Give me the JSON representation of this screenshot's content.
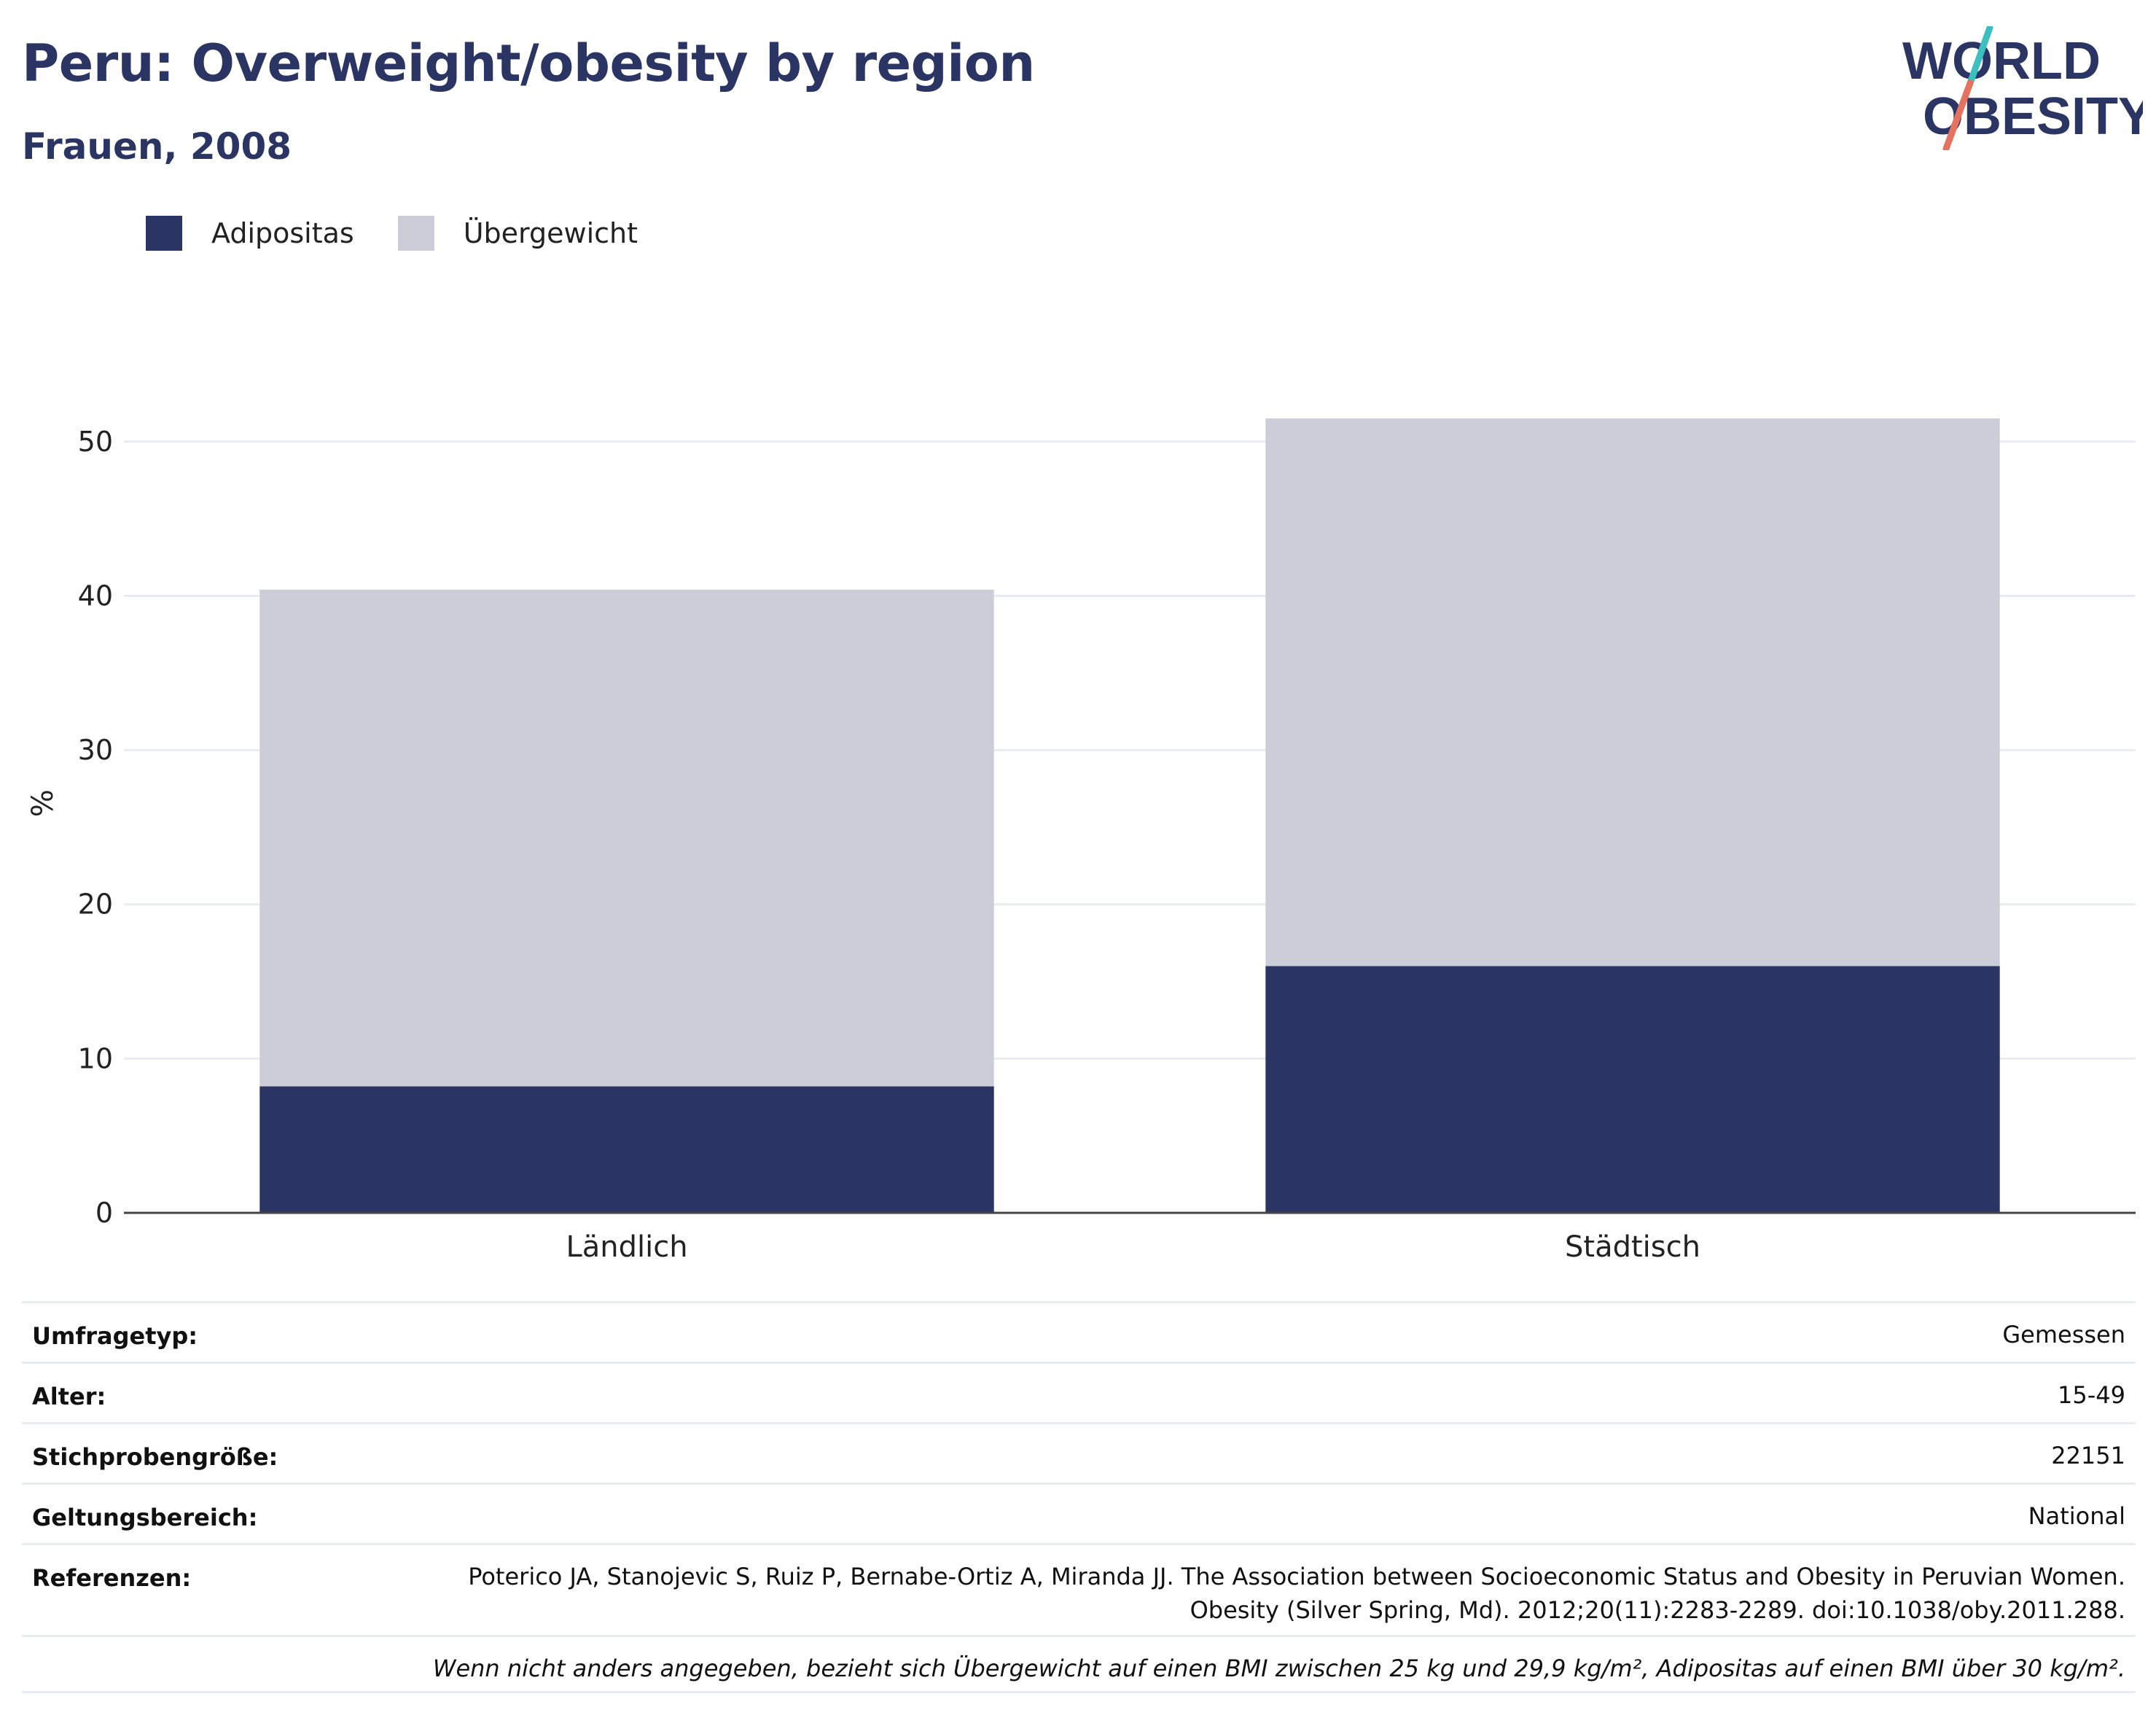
{
  "title": "Peru: Overweight/obesity by region",
  "subtitle": "Frauen, 2008",
  "logo": {
    "line1": "WORLD",
    "line2": "OBESITY"
  },
  "colors": {
    "obesity": "#2b3563",
    "overweight": "#cbcdd8",
    "accent_teal": "#3bbfbf",
    "accent_coral": "#e5725f"
  },
  "chart_data": {
    "type": "bar",
    "stacked": true,
    "categories": [
      "Ländlich",
      "Städtisch"
    ],
    "series": [
      {
        "name": "Adipositas",
        "values": [
          8.2,
          16.0
        ]
      },
      {
        "name": "Übergewicht",
        "values": [
          32.2,
          35.5
        ]
      }
    ],
    "ylabel": "%",
    "ylim": [
      0,
      55
    ],
    "yticks": [
      0,
      10,
      20,
      30,
      40,
      50
    ],
    "grid": true,
    "legend_position": "top-left"
  },
  "meta": {
    "rows": [
      {
        "key": "Umfragetyp:",
        "value": "Gemessen"
      },
      {
        "key": "Alter:",
        "value": "15-49"
      },
      {
        "key": "Stichprobengröße:",
        "value": "22151"
      },
      {
        "key": "Geltungsbereich:",
        "value": "National"
      },
      {
        "key": "Referenzen:",
        "value": "Poterico JA, Stanojevic S, Ruiz P, Bernabe-Ortiz A, Miranda JJ. The Association between Socioeconomic Status and Obesity in Peruvian Women. Obesity (Silver Spring, Md). 2012;20(11):2283-2289. doi:10.1038/oby.2011.288."
      }
    ],
    "note": "Wenn nicht anders angegeben, bezieht sich Übergewicht auf einen BMI zwischen 25 kg und 29,9 kg/m², Adipositas auf einen BMI über 30 kg/m²."
  }
}
